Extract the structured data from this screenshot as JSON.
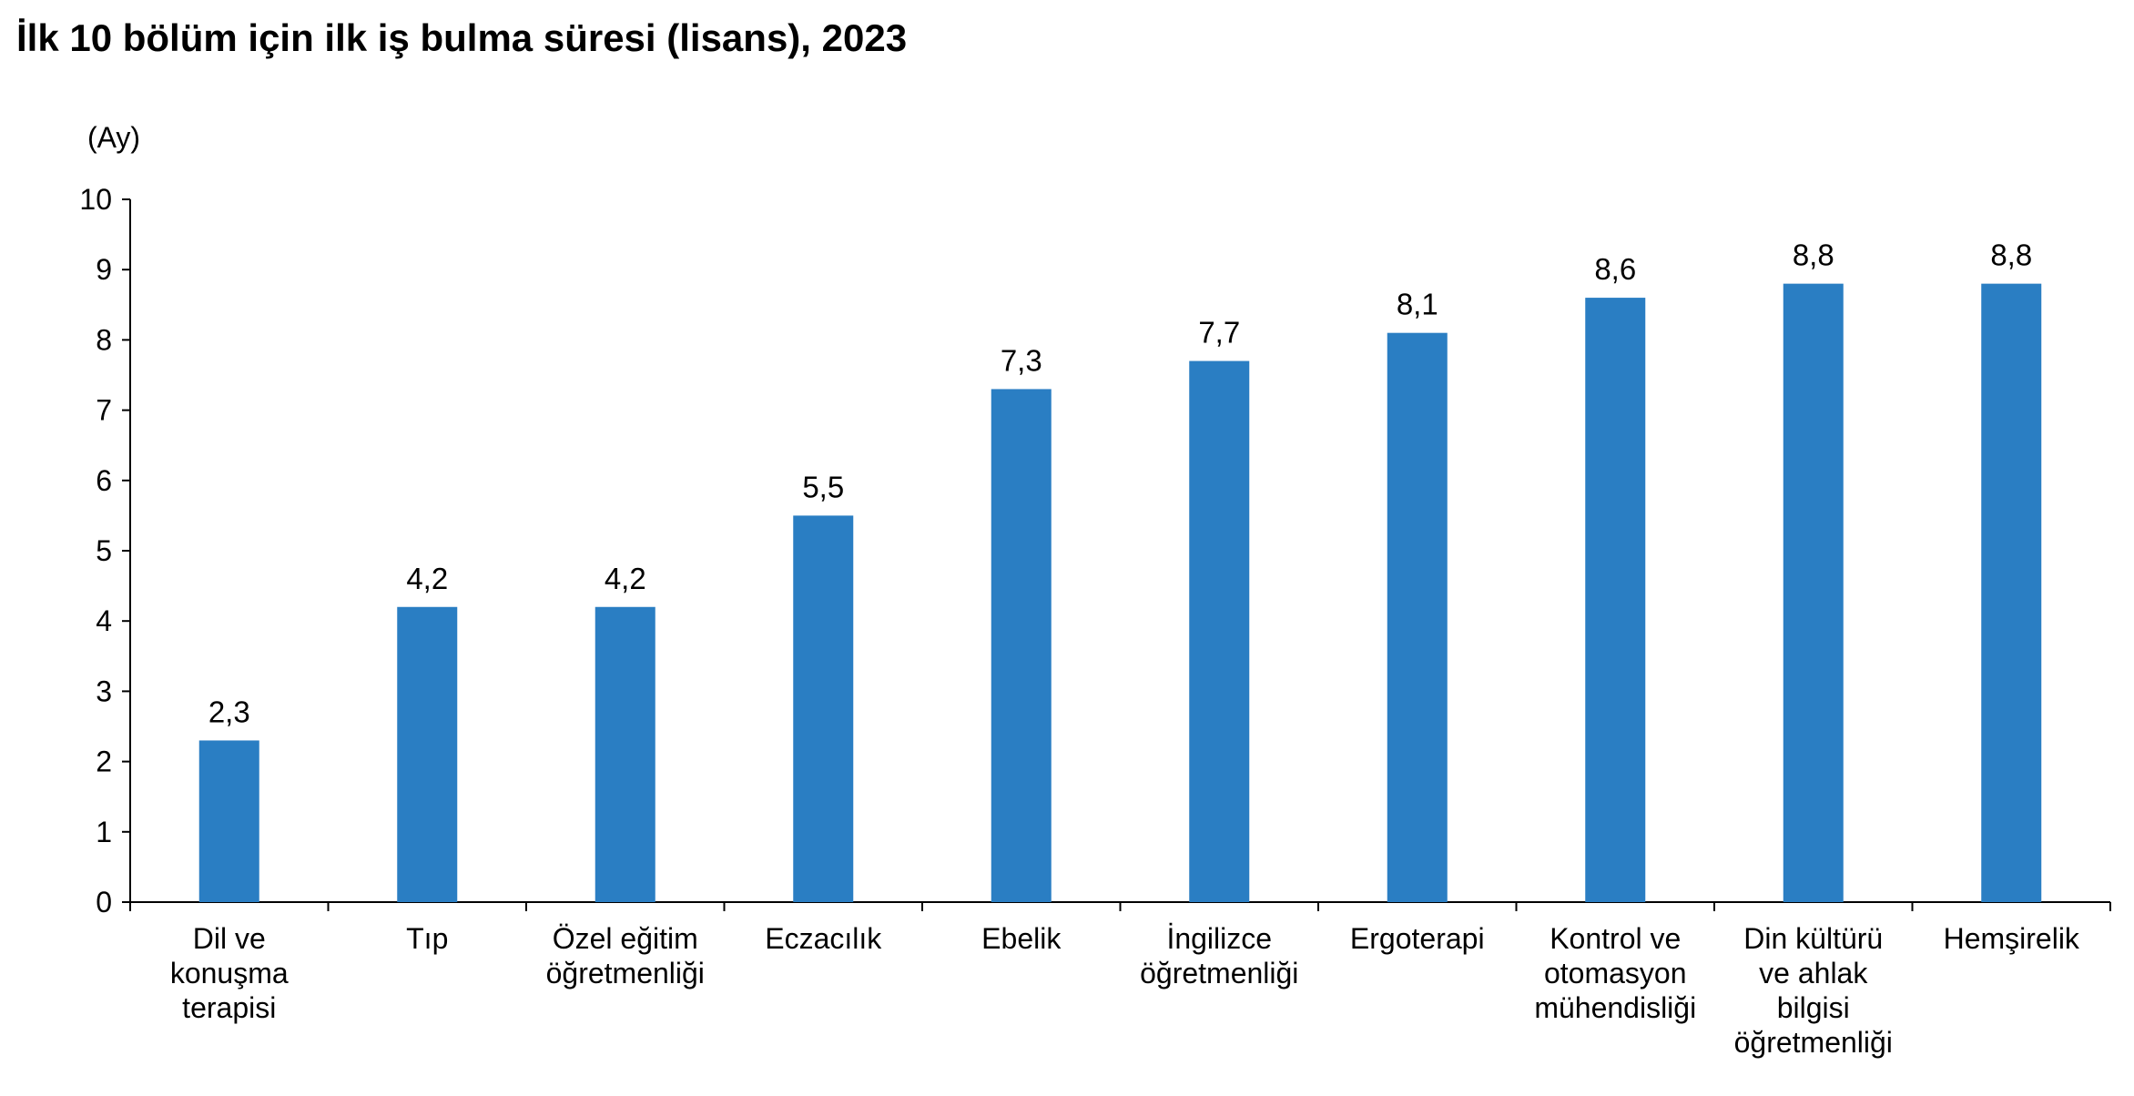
{
  "chart_data": {
    "type": "bar",
    "title": "İlk 10 bölüm için ilk iş bulma süresi (lisans), 2023",
    "unit_label": "(Ay)",
    "xlabel": "",
    "ylabel": "",
    "ylim": [
      0,
      10
    ],
    "yticks": [
      "0",
      "1",
      "2",
      "3",
      "4",
      "5",
      "6",
      "7",
      "8",
      "9",
      "10"
    ],
    "grid": false,
    "legend": "none",
    "bar_color": "#2a7ec3",
    "categories": [
      [
        "Dil ve",
        "konuşma",
        "terapisi"
      ],
      [
        "Tıp"
      ],
      [
        "Özel eğitim",
        "öğretmenliği"
      ],
      [
        "Eczacılık"
      ],
      [
        "Ebelik"
      ],
      [
        "İngilizce",
        "öğretmenliği"
      ],
      [
        "Ergoterapi"
      ],
      [
        "Kontrol ve",
        "otomasyon",
        "mühendisliği"
      ],
      [
        "Din kültürü",
        "ve ahlak",
        "bilgisi",
        "öğretmenliği"
      ],
      [
        "Hemşirelik"
      ]
    ],
    "values": [
      2.3,
      4.2,
      4.2,
      5.5,
      7.3,
      7.7,
      8.1,
      8.6,
      8.8,
      8.8
    ],
    "value_labels": [
      "2,3",
      "4,2",
      "4,2",
      "5,5",
      "7,3",
      "7,7",
      "8,1",
      "8,6",
      "8,8",
      "8,8"
    ]
  }
}
